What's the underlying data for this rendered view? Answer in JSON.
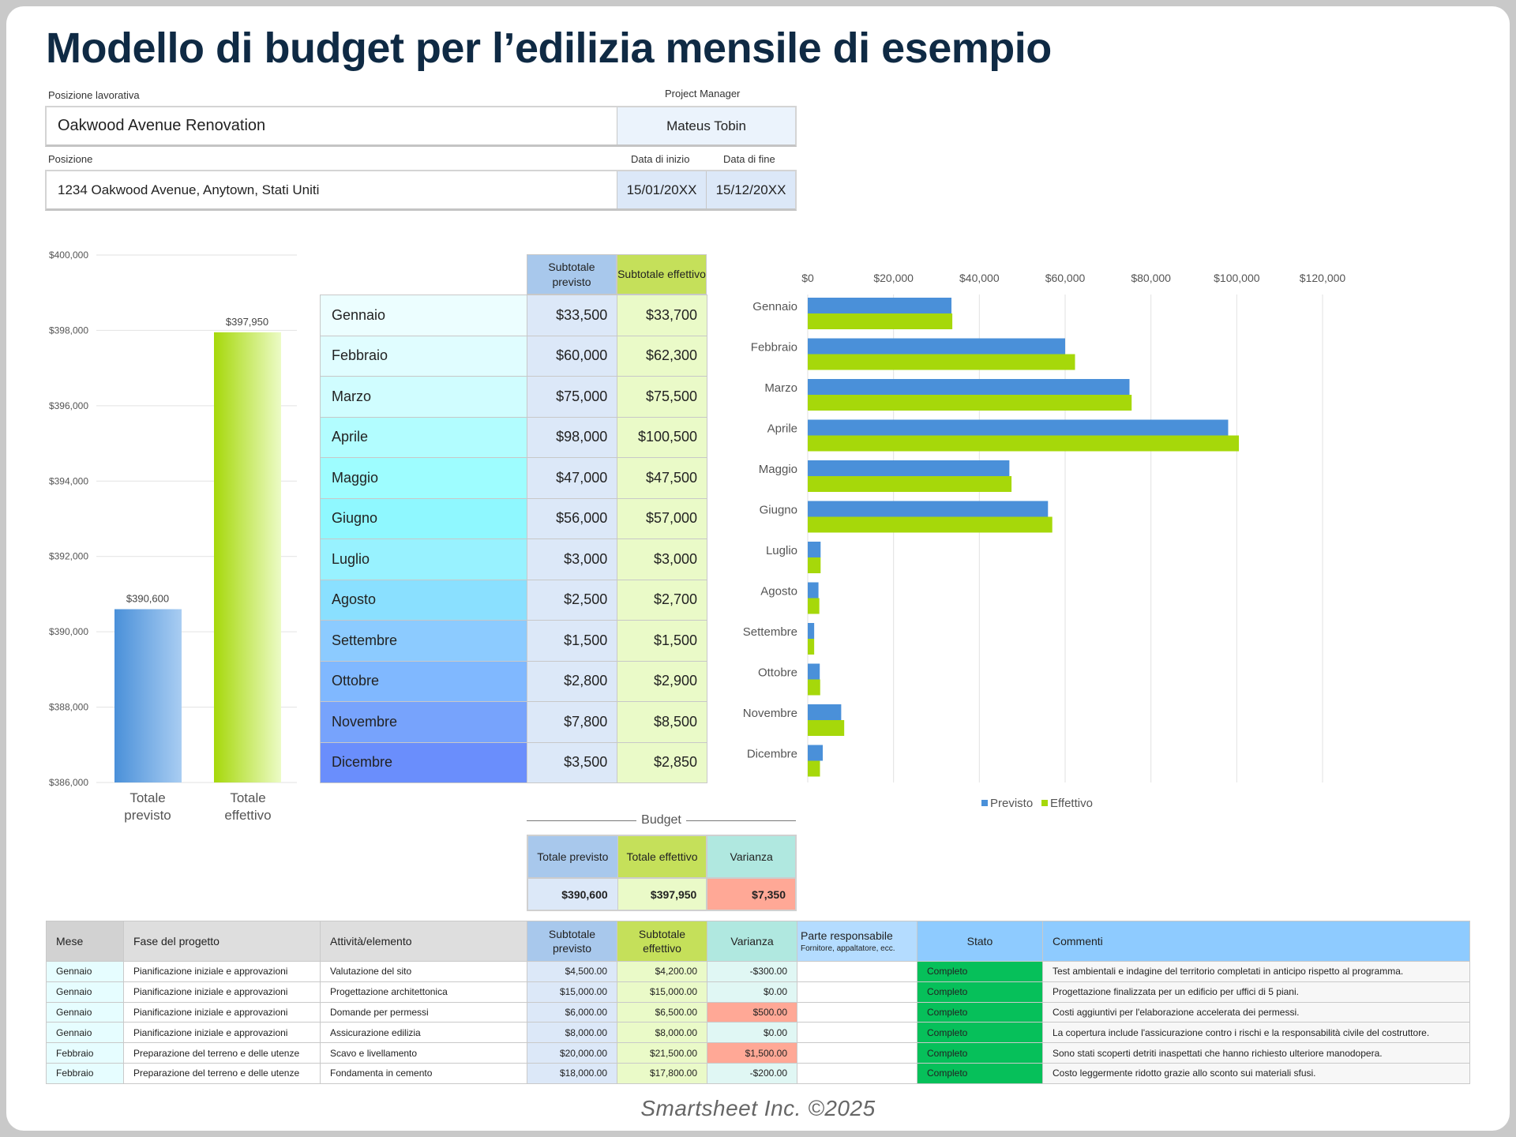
{
  "title": "Modello di budget per l’edilizia mensile di esempio",
  "form": {
    "job_label": "Posizione lavorativa",
    "job_value": "Oakwood Avenue Renovation",
    "pm_label": "Project Manager",
    "pm_value": "Mateus Tobin",
    "location_label": "Posizione",
    "location_value": "1234 Oakwood Avenue, Anytown, Stati Uniti",
    "start_label": "Data di inizio",
    "start_value": "15/01/20XX",
    "end_label": "Data di fine",
    "end_value": "15/12/20XX"
  },
  "colors": {
    "previsto": "#4a90d9",
    "effettivo": "#a6d80a",
    "status_complete": "#06c05a",
    "variance_over": "#ffa896"
  },
  "monthly": {
    "header_prev": "Subtotale previsto",
    "header_eff": "Subtotale effettivo",
    "rows": [
      {
        "month": "Gennaio",
        "prev": "$33,500",
        "eff": "$33,700",
        "color": "#ecfeff"
      },
      {
        "month": "Febbraio",
        "prev": "$60,000",
        "eff": "$62,300",
        "color": "#e0fdff"
      },
      {
        "month": "Marzo",
        "prev": "$75,000",
        "eff": "$75,500",
        "color": "#d0fdff"
      },
      {
        "month": "Aprile",
        "prev": "$98,000",
        "eff": "$100,500",
        "color": "#b2fdff"
      },
      {
        "month": "Maggio",
        "prev": "$47,000",
        "eff": "$47,500",
        "color": "#9efdff"
      },
      {
        "month": "Giugno",
        "prev": "$56,000",
        "eff": "$57,000",
        "color": "#8ff8ff"
      },
      {
        "month": "Luglio",
        "prev": "$3,000",
        "eff": "$3,000",
        "color": "#98f2ff"
      },
      {
        "month": "Agosto",
        "prev": "$2,500",
        "eff": "$2,700",
        "color": "#8ae0ff"
      },
      {
        "month": "Settembre",
        "prev": "$1,500",
        "eff": "$1,500",
        "color": "#8ccbff"
      },
      {
        "month": "Ottobre",
        "prev": "$2,800",
        "eff": "$2,900",
        "color": "#80b8ff"
      },
      {
        "month": "Novembre",
        "prev": "$7,800",
        "eff": "$8,500",
        "color": "#77a3fc"
      },
      {
        "month": "Dicembre",
        "prev": "$3,500",
        "eff": "$2,850",
        "color": "#6a8efc"
      }
    ]
  },
  "chart_data": [
    {
      "type": "bar",
      "categories": [
        "Totale previsto",
        "Totale effettivo"
      ],
      "values": [
        390600,
        397950
      ],
      "data_labels": [
        "$390,600",
        "$397,950"
      ],
      "ylim": [
        386000,
        400000
      ],
      "yticks": [
        "$386,000",
        "$388,000",
        "$390,000",
        "$392,000",
        "$394,000",
        "$396,000",
        "$398,000",
        "$400,000"
      ],
      "grid": true
    },
    {
      "type": "bar",
      "orientation": "horizontal",
      "categories": [
        "Gennaio",
        "Febbraio",
        "Marzo",
        "Aprile",
        "Maggio",
        "Giugno",
        "Luglio",
        "Agosto",
        "Settembre",
        "Ottobre",
        "Novembre",
        "Dicembre"
      ],
      "series": [
        {
          "name": "Previsto",
          "values": [
            33500,
            60000,
            75000,
            98000,
            47000,
            56000,
            3000,
            2500,
            1500,
            2800,
            7800,
            3500
          ]
        },
        {
          "name": "Effettivo",
          "values": [
            33700,
            62300,
            75500,
            100500,
            47500,
            57000,
            3000,
            2700,
            1500,
            2900,
            8500,
            2850
          ]
        }
      ],
      "xlim": [
        0,
        120000
      ],
      "xticks": [
        "$0",
        "$20,000",
        "$40,000",
        "$60,000",
        "$80,000",
        "$100,000",
        "$120,000"
      ],
      "grid": true,
      "legend": "bottom"
    }
  ],
  "budget": {
    "label": "Budget",
    "prev_label": "Totale previsto",
    "eff_label": "Totale effettivo",
    "var_label": "Varianza",
    "prev": "$390,600",
    "eff": "$397,950",
    "var": "$7,350"
  },
  "details": {
    "headers": [
      "Mese",
      "Fase del progetto",
      "Attività/elemento",
      "Subtotale previsto",
      "Subtotale effettivo",
      "Varianza",
      "Parte responsabile",
      "Stato",
      "Commenti"
    ],
    "resp_sub": "Fornitore, appaltatore, ecc.",
    "rows": [
      [
        "Gennaio",
        "Pianificazione iniziale e approvazioni",
        "Valutazione del sito",
        "$4,500.00",
        "$4,200.00",
        "-$300.00",
        "",
        "Completo",
        "Test ambientali e indagine del territorio completati in anticipo rispetto al programma."
      ],
      [
        "Gennaio",
        "Pianificazione iniziale e approvazioni",
        "Progettazione architettonica",
        "$15,000.00",
        "$15,000.00",
        "$0.00",
        "",
        "Completo",
        "Progettazione finalizzata per un edificio per uffici di 5 piani."
      ],
      [
        "Gennaio",
        "Pianificazione iniziale e approvazioni",
        "Domande per permessi",
        "$6,000.00",
        "$6,500.00",
        "$500.00",
        "",
        "Completo",
        "Costi aggiuntivi per l'elaborazione accelerata dei permessi."
      ],
      [
        "Gennaio",
        "Pianificazione iniziale e approvazioni",
        "Assicurazione edilizia",
        "$8,000.00",
        "$8,000.00",
        "$0.00",
        "",
        "Completo",
        "La copertura include l'assicurazione contro i rischi e la responsabilità civile del costruttore."
      ],
      [
        "Febbraio",
        "Preparazione del terreno e delle utenze",
        "Scavo e livellamento",
        "$20,000.00",
        "$21,500.00",
        "$1,500.00",
        "",
        "Completo",
        "Sono stati scoperti detriti inaspettati che hanno richiesto ulteriore manodopera."
      ],
      [
        "Febbraio",
        "Preparazione del terreno e delle utenze",
        "Fondamenta in cemento",
        "$18,000.00",
        "$17,800.00",
        "-$200.00",
        "",
        "Completo",
        "Costo leggermente ridotto grazie allo sconto sui materiali sfusi."
      ]
    ]
  },
  "footer": "Smartsheet Inc. ©2025"
}
